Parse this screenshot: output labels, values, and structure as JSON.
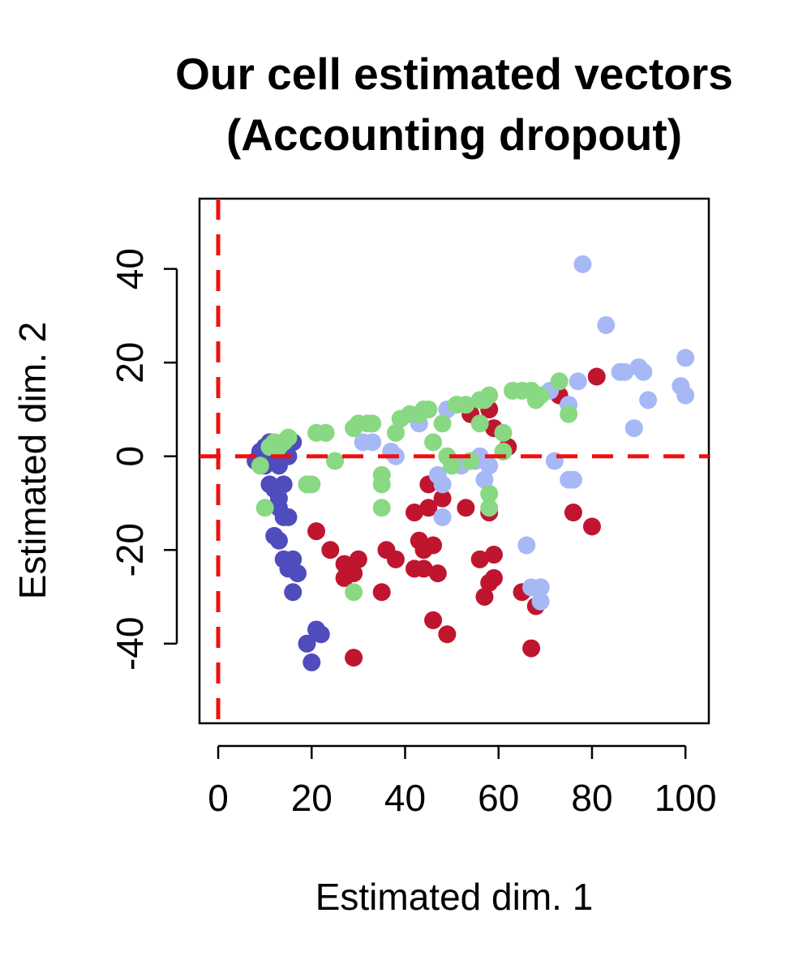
{
  "chart_data": {
    "type": "scatter",
    "title_lines": [
      "Our cell estimated vectors",
      "(Accounting dropout)"
    ],
    "xlabel": "Estimated dim. 1",
    "ylabel": "Estimated dim. 2",
    "xlim": [
      -4,
      105
    ],
    "ylim": [
      -57,
      55
    ],
    "x_ticks": [
      0,
      20,
      40,
      60,
      80,
      100
    ],
    "y_ticks": [
      -40,
      -20,
      0,
      20,
      40
    ],
    "x_tick_labels": [
      "0",
      "20",
      "40",
      "60",
      "80",
      "100"
    ],
    "y_tick_labels": [
      "-40",
      "-20",
      "0",
      "20",
      "40"
    ],
    "reference_lines": {
      "x": 0,
      "y": 0,
      "color": "#ee1111",
      "style": "dashed"
    },
    "grid": false,
    "legend": "none",
    "series": [
      {
        "color": "#c0152f",
        "points": [
          [
            21,
            -16
          ],
          [
            24,
            -20
          ],
          [
            27,
            -23
          ],
          [
            27,
            -26
          ],
          [
            29,
            -25
          ],
          [
            30,
            -22
          ],
          [
            29,
            -43
          ],
          [
            35,
            -29
          ],
          [
            36,
            -20
          ],
          [
            38,
            -22
          ],
          [
            42,
            -12
          ],
          [
            42,
            -24
          ],
          [
            43,
            -18
          ],
          [
            44,
            -20
          ],
          [
            44,
            -24
          ],
          [
            45,
            -6
          ],
          [
            45,
            -11
          ],
          [
            46,
            -19
          ],
          [
            46,
            -35
          ],
          [
            47,
            -25
          ],
          [
            48,
            -9
          ],
          [
            49,
            -38
          ],
          [
            53,
            -11
          ],
          [
            56,
            -22
          ],
          [
            57,
            -30
          ],
          [
            58,
            -27
          ],
          [
            58,
            -12
          ],
          [
            59,
            -21
          ],
          [
            59,
            -26
          ],
          [
            58,
            10
          ],
          [
            59,
            6
          ],
          [
            62,
            2
          ],
          [
            65,
            -29
          ],
          [
            67,
            -41
          ],
          [
            68,
            -32
          ],
          [
            69,
            -28
          ],
          [
            73,
            13
          ],
          [
            76,
            -12
          ],
          [
            80,
            -15
          ],
          [
            81,
            17
          ],
          [
            54,
            9
          ]
        ]
      },
      {
        "color": "#4f4cbd",
        "points": [
          [
            8,
            -1
          ],
          [
            9,
            1
          ],
          [
            10,
            2
          ],
          [
            11,
            3
          ],
          [
            12,
            3
          ],
          [
            13,
            2
          ],
          [
            14,
            1
          ],
          [
            15,
            0
          ],
          [
            16,
            3
          ],
          [
            12,
            -1
          ],
          [
            13,
            -2
          ],
          [
            10,
            -2
          ],
          [
            11,
            -6
          ],
          [
            12,
            -7
          ],
          [
            13,
            -9
          ],
          [
            14,
            -6
          ],
          [
            13,
            -11
          ],
          [
            14,
            -13
          ],
          [
            15,
            -13
          ],
          [
            12,
            -17
          ],
          [
            13,
            -18
          ],
          [
            14,
            -22
          ],
          [
            15,
            -24
          ],
          [
            16,
            -22
          ],
          [
            17,
            -25
          ],
          [
            16,
            -29
          ],
          [
            19,
            -40
          ],
          [
            21,
            -37
          ],
          [
            22,
            -38
          ],
          [
            20,
            -44
          ],
          [
            11,
            0
          ],
          [
            14,
            3
          ]
        ]
      },
      {
        "color": "#a7b8f7",
        "points": [
          [
            31,
            3
          ],
          [
            33,
            3
          ],
          [
            37,
            1
          ],
          [
            38,
            0
          ],
          [
            43,
            7
          ],
          [
            49,
            10
          ],
          [
            52,
            -2
          ],
          [
            55,
            -1
          ],
          [
            57,
            -5
          ],
          [
            58,
            -2
          ],
          [
            48,
            -6
          ],
          [
            48,
            -13
          ],
          [
            47,
            -4
          ],
          [
            56,
            0
          ],
          [
            66,
            -19
          ],
          [
            67,
            -28
          ],
          [
            69,
            -28
          ],
          [
            69,
            -31
          ],
          [
            71,
            14
          ],
          [
            72,
            -1
          ],
          [
            75,
            -5
          ],
          [
            76,
            -5
          ],
          [
            75,
            11
          ],
          [
            77,
            16
          ],
          [
            78,
            41
          ],
          [
            83,
            28
          ],
          [
            86,
            18
          ],
          [
            87,
            18
          ],
          [
            89,
            6
          ],
          [
            90,
            19
          ],
          [
            91,
            18
          ],
          [
            92,
            12
          ],
          [
            99,
            15
          ],
          [
            100,
            13
          ],
          [
            100,
            21
          ]
        ]
      },
      {
        "color": "#89d883",
        "points": [
          [
            9,
            -2
          ],
          [
            10,
            -11
          ],
          [
            11,
            2
          ],
          [
            12,
            3
          ],
          [
            13,
            2
          ],
          [
            14,
            3
          ],
          [
            15,
            4
          ],
          [
            19,
            -6
          ],
          [
            20,
            -6
          ],
          [
            21,
            5
          ],
          [
            23,
            5
          ],
          [
            25,
            -1
          ],
          [
            29,
            6
          ],
          [
            30,
            7
          ],
          [
            32,
            7
          ],
          [
            33,
            7
          ],
          [
            35,
            -4
          ],
          [
            35,
            -6
          ],
          [
            35,
            -11
          ],
          [
            38,
            5
          ],
          [
            39,
            8
          ],
          [
            41,
            9
          ],
          [
            43,
            9
          ],
          [
            44,
            10
          ],
          [
            45,
            10
          ],
          [
            46,
            3
          ],
          [
            48,
            7
          ],
          [
            49,
            0
          ],
          [
            50,
            -2
          ],
          [
            51,
            11
          ],
          [
            53,
            11
          ],
          [
            54,
            -1
          ],
          [
            56,
            7
          ],
          [
            56,
            12
          ],
          [
            57,
            12
          ],
          [
            58,
            -8
          ],
          [
            58,
            -11
          ],
          [
            58,
            13
          ],
          [
            61,
            5
          ],
          [
            61,
            1
          ],
          [
            63,
            14
          ],
          [
            65,
            14
          ],
          [
            67,
            14
          ],
          [
            68,
            12
          ],
          [
            69,
            13
          ],
          [
            73,
            16
          ],
          [
            75,
            9
          ],
          [
            29,
            -29
          ]
        ]
      }
    ]
  }
}
